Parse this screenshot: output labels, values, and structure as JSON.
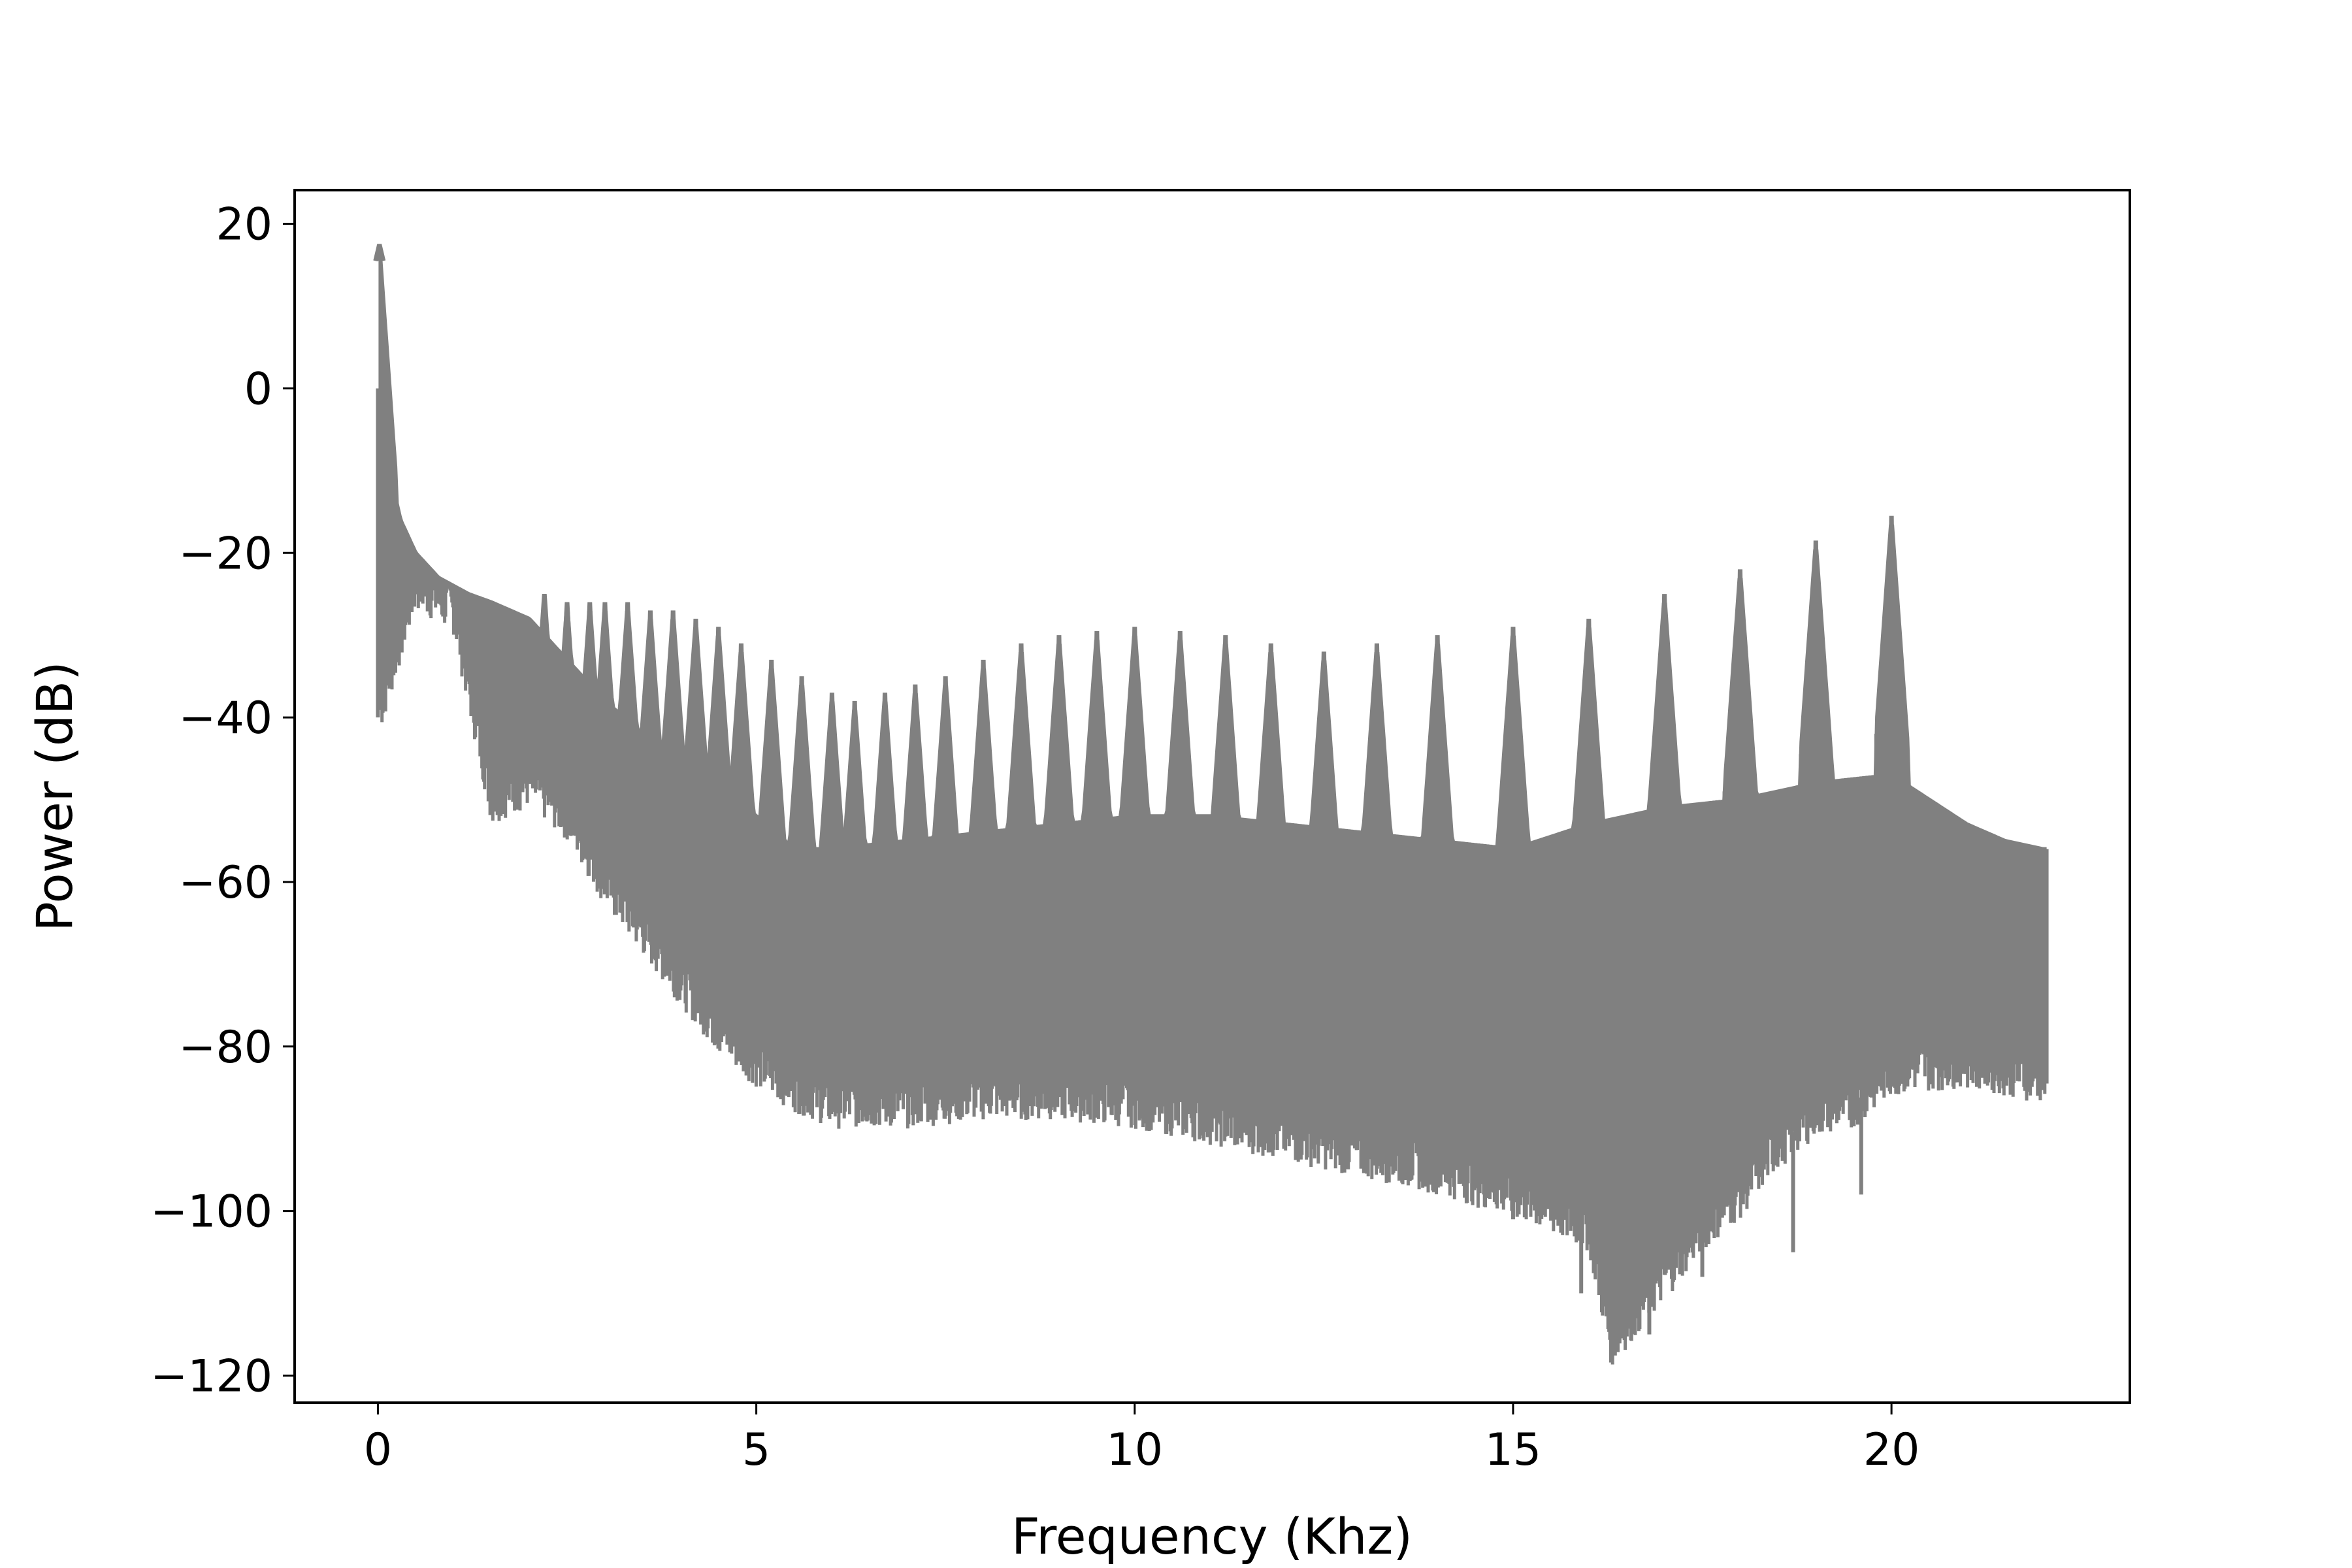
{
  "chart_data": {
    "type": "line",
    "title": "",
    "xlabel": "Frequency (Khz)",
    "ylabel": "Power (dB)",
    "xlim": [
      -1.1,
      23.15
    ],
    "ylim": [
      -123.3,
      24.1
    ],
    "xticks": [
      0,
      5,
      10,
      15,
      20
    ],
    "xtick_labels": [
      "0",
      "5",
      "10",
      "15",
      "20"
    ],
    "yticks": [
      20,
      0,
      -20,
      -40,
      -60,
      -80,
      -100,
      -120
    ],
    "ytick_labels": [
      "20",
      "0",
      "−20",
      "−40",
      "−60",
      "−80",
      "−100",
      "−120"
    ],
    "grid": false,
    "line_color": "#808080",
    "series": [
      {
        "description_of_shape": "dense oscillating power spectrum; upper envelope with harmonic peaks, lower envelope of troughs",
        "upper_envelope": {
          "x": [
            0.0,
            0.02,
            0.05,
            0.1,
            0.2,
            0.3,
            0.5,
            0.8,
            1.0,
            1.2,
            1.5,
            2.0,
            2.5,
            3.0,
            3.5,
            4.0,
            4.5,
            5.0,
            5.5,
            6.0,
            7.0,
            8.0,
            9.0,
            10.0,
            11.0,
            12.0,
            13.0,
            14.0,
            15.0,
            16.0,
            17.0,
            18.0,
            19.0,
            20.0,
            20.5,
            21.0,
            21.5,
            22.0,
            22.05
          ],
          "y": [
            0,
            17.5,
            5,
            -5,
            -12,
            -16,
            -20,
            -23,
            -24,
            -25,
            -26,
            -28,
            -33,
            -38,
            -42,
            -45,
            -48,
            -52,
            -56,
            -56,
            -55,
            -54,
            -53,
            -52,
            -52,
            -53,
            -54,
            -55,
            -56,
            -53,
            -51,
            -50,
            -48,
            -47,
            -50,
            -53,
            -55,
            -56,
            -56
          ]
        },
        "peaks": {
          "x": [
            0.02,
            2.2,
            2.5,
            2.8,
            3.0,
            3.3,
            3.6,
            3.9,
            4.2,
            4.5,
            4.8,
            5.2,
            5.6,
            6.0,
            6.3,
            6.7,
            7.1,
            7.5,
            8.0,
            8.5,
            9.0,
            9.5,
            10.0,
            10.6,
            11.2,
            11.8,
            12.5,
            13.2,
            14.0,
            15.0,
            16.0,
            17.0,
            18.0,
            19.0,
            20.0
          ],
          "y": [
            17.5,
            -25,
            -26,
            -26,
            -26,
            -26,
            -27,
            -27,
            -28,
            -29,
            -31,
            -33,
            -35,
            -37,
            -38,
            -37,
            -36,
            -35,
            -33,
            -31,
            -30,
            -29.5,
            -29,
            -29.5,
            -30,
            -31,
            -32,
            -31,
            -30,
            -29,
            -28,
            -25,
            -22,
            -18.5,
            -15.5
          ]
        },
        "lower_envelope": {
          "x": [
            0.0,
            0.5,
            1.0,
            1.5,
            2.0,
            2.5,
            3.0,
            3.5,
            4.0,
            4.5,
            5.0,
            5.5,
            6.0,
            7.0,
            8.0,
            9.0,
            10.0,
            11.0,
            12.0,
            13.0,
            14.0,
            15.0,
            16.0,
            16.3,
            17.0,
            17.5,
            18.0,
            18.5,
            19.0,
            19.5,
            20.0,
            21.0,
            22.0
          ],
          "y": [
            -40,
            -24,
            -27,
            -50,
            -48,
            -52,
            -60,
            -66,
            -72,
            -78,
            -82,
            -85,
            -87,
            -87,
            -86,
            -86,
            -87,
            -89,
            -91,
            -93,
            -95,
            -98,
            -102,
            -116,
            -108,
            -102,
            -98,
            -92,
            -88,
            -87,
            -83,
            -82,
            -84
          ]
        }
      }
    ]
  }
}
